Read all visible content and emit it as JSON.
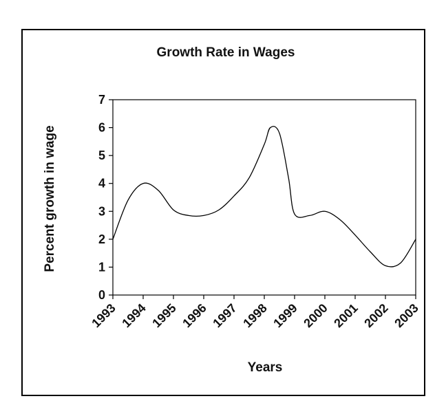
{
  "chart_data": {
    "type": "line",
    "title": "Growth Rate in Wages",
    "xlabel": "Years",
    "ylabel": "Percent growth in wage",
    "categories": [
      "1993",
      "1994",
      "1995",
      "1996",
      "1997",
      "1998",
      "1999",
      "2000",
      "2001",
      "2002",
      "2003"
    ],
    "yticks": [
      "0",
      "1",
      "2",
      "3",
      "4",
      "5",
      "6",
      "7"
    ],
    "ylim": [
      0,
      7
    ],
    "grid": false,
    "legend": "none",
    "line_color": "#000000",
    "series": [
      {
        "x": [
          1993,
          1993.5,
          1994,
          1994.5,
          1995,
          1995.5,
          1996,
          1996.5,
          1997,
          1997.5,
          1998,
          1998.2,
          1998.5,
          1998.8,
          1999,
          1999.5,
          2000,
          2000.5,
          2001,
          2001.5,
          2002,
          2002.5,
          2003
        ],
        "values": [
          2.0,
          3.4,
          4.0,
          3.75,
          3.05,
          2.85,
          2.85,
          3.05,
          3.55,
          4.2,
          5.4,
          6.0,
          5.8,
          4.2,
          2.9,
          2.85,
          3.0,
          2.7,
          2.15,
          1.55,
          1.05,
          1.15,
          2.0
        ]
      }
    ]
  }
}
